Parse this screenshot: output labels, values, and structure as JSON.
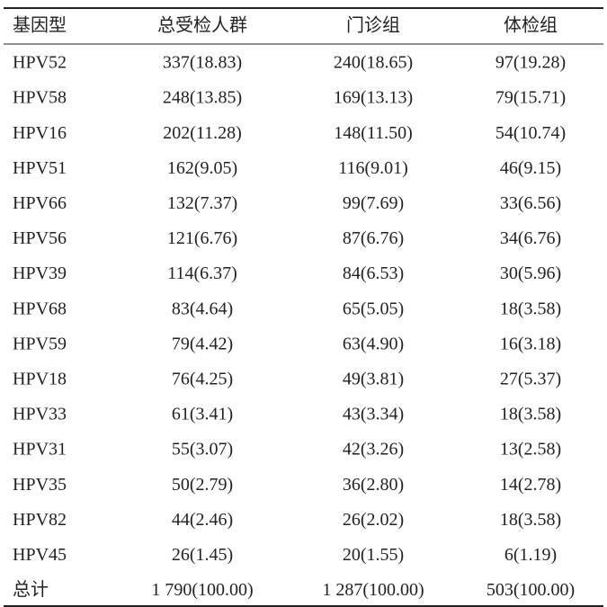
{
  "table": {
    "header": [
      "基因型",
      "总受检人群",
      "门诊组",
      "体检组"
    ],
    "rows": [
      [
        "HPV52",
        "337(18.83)",
        "240(18.65)",
        "97(19.28)"
      ],
      [
        "HPV58",
        "248(13.85)",
        "169(13.13)",
        "79(15.71)"
      ],
      [
        "HPV16",
        "202(11.28)",
        "148(11.50)",
        "54(10.74)"
      ],
      [
        "HPV51",
        "162(9.05)",
        "116(9.01)",
        "46(9.15)"
      ],
      [
        "HPV66",
        "132(7.37)",
        "99(7.69)",
        "33(6.56)"
      ],
      [
        "HPV56",
        "121(6.76)",
        "87(6.76)",
        "34(6.76)"
      ],
      [
        "HPV39",
        "114(6.37)",
        "84(6.53)",
        "30(5.96)"
      ],
      [
        "HPV68",
        "83(4.64)",
        "65(5.05)",
        "18(3.58)"
      ],
      [
        "HPV59",
        "79(4.42)",
        "63(4.90)",
        "16(3.18)"
      ],
      [
        "HPV18",
        "76(4.25)",
        "49(3.81)",
        "27(5.37)"
      ],
      [
        "HPV33",
        "61(3.41)",
        "43(3.34)",
        "18(3.58)"
      ],
      [
        "HPV31",
        "55(3.07)",
        "42(3.26)",
        "13(2.58)"
      ],
      [
        "HPV35",
        "50(2.79)",
        "36(2.80)",
        "14(2.78)"
      ],
      [
        "HPV82",
        "44(2.46)",
        "26(2.02)",
        "18(3.58)"
      ],
      [
        "HPV45",
        "26(1.45)",
        "20(1.55)",
        "6(1.19)"
      ],
      [
        "总计",
        "1 790(100.00)",
        "1 287(100.00)",
        "503(100.00)"
      ]
    ]
  }
}
